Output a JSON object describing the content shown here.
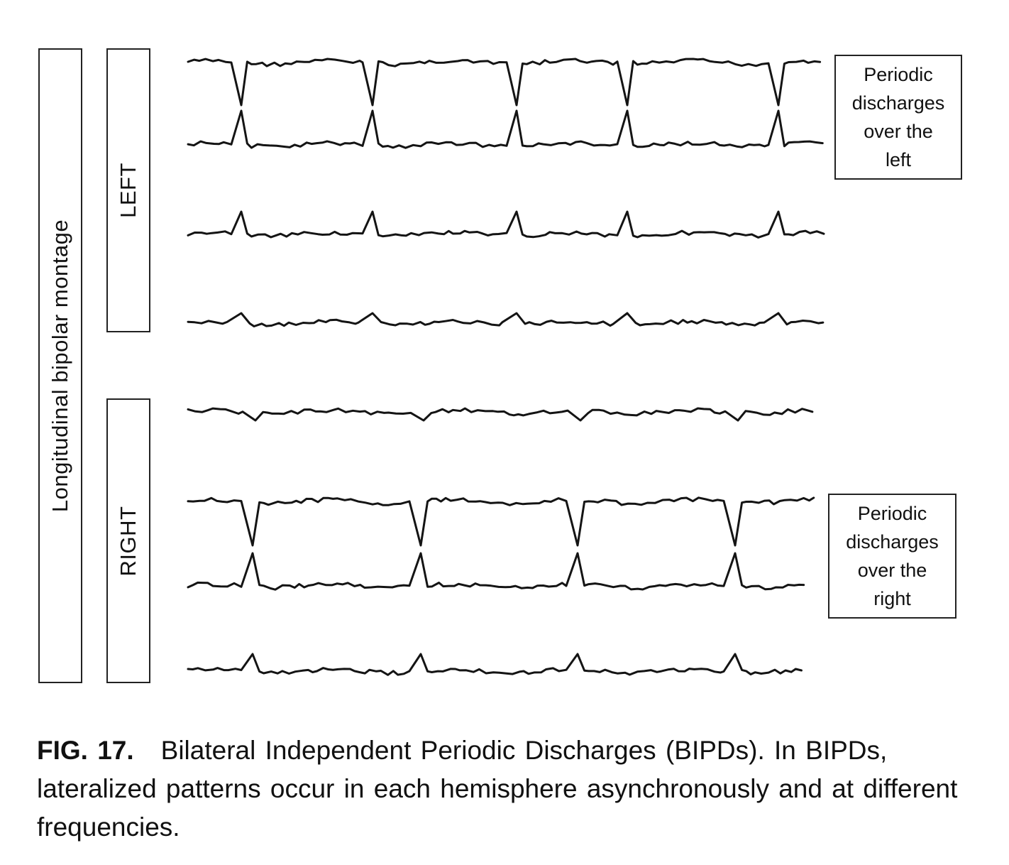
{
  "montage_label": "Longitudinal bipolar montage",
  "left_group_label": "LEFT",
  "right_group_label": "RIGHT",
  "callout_left": [
    "Periodic",
    "discharges",
    "over the",
    "left"
  ],
  "callout_right": [
    "Periodic",
    "discharges",
    "over the",
    "right"
  ],
  "caption": {
    "figure_label": "FIG. 17.",
    "text": "Bilateral Independent Periodic Discharges (BIPDs). In BIPDs, lateralized patterns occur in each hemisphere asynchronously and at different frequencies."
  },
  "traces": [
    {
      "id": "left-1",
      "hemisphere": "left",
      "discharges": "down",
      "peaks": [
        340,
        525,
        728,
        884,
        1097
      ]
    },
    {
      "id": "left-2",
      "hemisphere": "left",
      "discharges": "up",
      "peaks": [
        340,
        525,
        728,
        884,
        1097
      ]
    },
    {
      "id": "left-3",
      "hemisphere": "left",
      "discharges": "up",
      "peaks": [
        340,
        525,
        728,
        884,
        1097
      ]
    },
    {
      "id": "left-4",
      "hemisphere": "left",
      "discharges": "up",
      "peaks": [
        340,
        525,
        728,
        884,
        1097
      ]
    },
    {
      "id": "right-1",
      "hemisphere": "right",
      "discharges": "down",
      "peaks": [
        360,
        597,
        818,
        1040
      ]
    },
    {
      "id": "right-2",
      "hemisphere": "right",
      "discharges": "down",
      "peaks": [
        356,
        593,
        814,
        1036
      ]
    },
    {
      "id": "right-3",
      "hemisphere": "right",
      "discharges": "up",
      "peaks": [
        356,
        593,
        814,
        1036
      ]
    },
    {
      "id": "right-4",
      "hemisphere": "right",
      "discharges": "up",
      "peaks": [
        356,
        593,
        814,
        1036
      ]
    }
  ]
}
